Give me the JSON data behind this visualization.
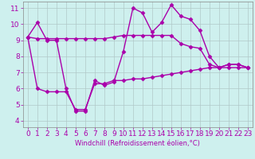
{
  "xlabel": "Windchill (Refroidissement éolien,°C)",
  "background_color": "#cef0ee",
  "line_color": "#aa00aa",
  "xlim": [
    -0.5,
    23.5
  ],
  "ylim": [
    3.6,
    11.4
  ],
  "xticks": [
    0,
    1,
    2,
    3,
    4,
    5,
    6,
    7,
    8,
    9,
    10,
    11,
    12,
    13,
    14,
    15,
    16,
    17,
    18,
    19,
    20,
    21,
    22,
    23
  ],
  "yticks": [
    4,
    5,
    6,
    7,
    8,
    9,
    10,
    11
  ],
  "series1_x": [
    0,
    1,
    2,
    3,
    4,
    5,
    6,
    7,
    8,
    9,
    10,
    11,
    12,
    13,
    14,
    15,
    16,
    17,
    18,
    19,
    20,
    21,
    22,
    23
  ],
  "series1_y": [
    9.2,
    10.1,
    9.0,
    9.0,
    6.0,
    4.6,
    4.6,
    6.5,
    6.2,
    6.4,
    8.3,
    11.0,
    10.7,
    9.5,
    10.1,
    11.2,
    10.5,
    10.3,
    9.6,
    8.0,
    7.3,
    7.5,
    7.5,
    7.3
  ],
  "series2_x": [
    0,
    1,
    2,
    3,
    4,
    5,
    6,
    7,
    8,
    9,
    10,
    11,
    12,
    13,
    14,
    15,
    16,
    17,
    18,
    19,
    20,
    21,
    22,
    23
  ],
  "series2_y": [
    9.2,
    9.1,
    9.1,
    9.1,
    9.1,
    9.1,
    9.1,
    9.1,
    9.1,
    9.2,
    9.3,
    9.3,
    9.3,
    9.3,
    9.3,
    9.3,
    8.8,
    8.6,
    8.5,
    7.5,
    7.3,
    7.3,
    7.3,
    7.3
  ],
  "series3_x": [
    0,
    1,
    2,
    3,
    4,
    5,
    6,
    7,
    8,
    9,
    10,
    11,
    12,
    13,
    14,
    15,
    16,
    17,
    18,
    19,
    20,
    21,
    22,
    23
  ],
  "series3_y": [
    9.2,
    6.0,
    5.8,
    5.8,
    5.8,
    4.7,
    4.7,
    6.3,
    6.3,
    6.5,
    6.5,
    6.6,
    6.6,
    6.7,
    6.8,
    6.9,
    7.0,
    7.1,
    7.2,
    7.3,
    7.3,
    7.5,
    7.5,
    7.3
  ],
  "grid_color": "#b0c8c8",
  "marker": "D",
  "marker_size": 2.5,
  "linewidth": 1.0,
  "font_size": 6.5,
  "label_fontsize": 6.0
}
